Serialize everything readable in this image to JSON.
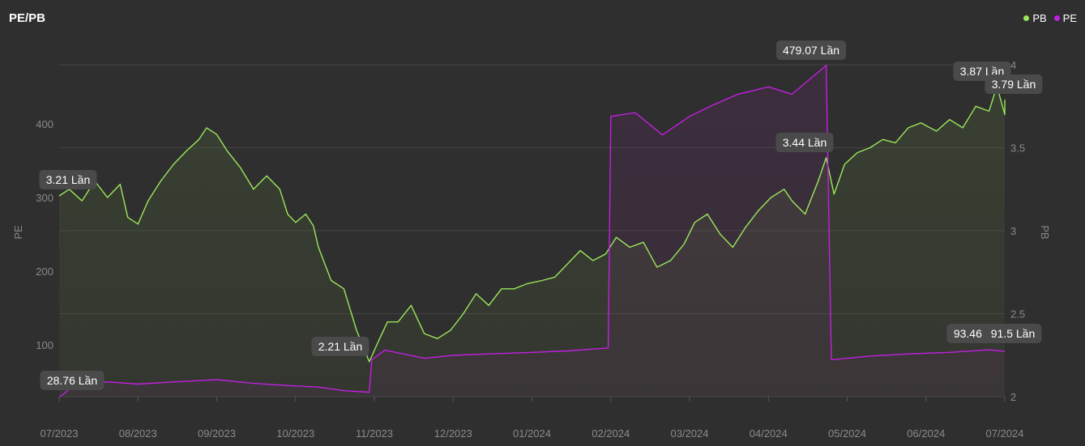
{
  "header": {
    "title": "PE/PB"
  },
  "legend": [
    {
      "name": "PB",
      "color": "#9be65a"
    },
    {
      "name": "PE",
      "color": "#c21fe0"
    }
  ],
  "chart_data": {
    "type": "line",
    "title": "PE/PB",
    "x_ticks": [
      "07/2023",
      "08/2023",
      "09/2023",
      "10/2023",
      "11/2023",
      "12/2023",
      "01/2024",
      "02/2024",
      "03/2024",
      "04/2024",
      "05/2024",
      "06/2024",
      "07/2024"
    ],
    "y_left": {
      "label": "PE",
      "ticks": [
        "100",
        "200",
        "300",
        "400"
      ],
      "range": [
        30,
        480
      ]
    },
    "y_right": {
      "label": "PB",
      "ticks": [
        "2",
        "2.5",
        "3",
        "3.5",
        "4"
      ],
      "range": [
        2,
        4
      ]
    },
    "grid": true,
    "legend_position": "top-right",
    "series": [
      {
        "name": "PB",
        "axis": "right",
        "color": "#9be65a",
        "points": [
          [
            "07/01/2023",
            3.21
          ],
          [
            "07/05/2023",
            3.25
          ],
          [
            "07/10/2023",
            3.18
          ],
          [
            "07/15/2023",
            3.3
          ],
          [
            "07/20/2023",
            3.2
          ],
          [
            "07/25/2023",
            3.28
          ],
          [
            "07/28/2023",
            3.08
          ],
          [
            "08/01/2023",
            3.04
          ],
          [
            "08/05/2023",
            3.18
          ],
          [
            "08/10/2023",
            3.3
          ],
          [
            "08/15/2023",
            3.4
          ],
          [
            "08/20/2023",
            3.48
          ],
          [
            "08/25/2023",
            3.55
          ],
          [
            "08/28/2023",
            3.62
          ],
          [
            "09/01/2023",
            3.58
          ],
          [
            "09/05/2023",
            3.48
          ],
          [
            "09/10/2023",
            3.38
          ],
          [
            "09/15/2023",
            3.25
          ],
          [
            "09/20/2023",
            3.33
          ],
          [
            "09/25/2023",
            3.25
          ],
          [
            "09/28/2023",
            3.1
          ],
          [
            "10/01/2023",
            3.05
          ],
          [
            "10/05/2023",
            3.1
          ],
          [
            "10/08/2023",
            3.03
          ],
          [
            "10/10/2023",
            2.9
          ],
          [
            "10/15/2023",
            2.7
          ],
          [
            "10/20/2023",
            2.65
          ],
          [
            "10/25/2023",
            2.4
          ],
          [
            "10/30/2023",
            2.21
          ],
          [
            "11/03/2023",
            2.35
          ],
          [
            "11/06/2023",
            2.45
          ],
          [
            "11/10/2023",
            2.45
          ],
          [
            "11/15/2023",
            2.55
          ],
          [
            "11/20/2023",
            2.38
          ],
          [
            "11/25/2023",
            2.35
          ],
          [
            "11/30/2023",
            2.4
          ],
          [
            "12/05/2023",
            2.5
          ],
          [
            "12/10/2023",
            2.62
          ],
          [
            "12/15/2023",
            2.55
          ],
          [
            "12/20/2023",
            2.65
          ],
          [
            "12/25/2023",
            2.65
          ],
          [
            "12/30/2023",
            2.68
          ],
          [
            "01/05/2024",
            2.7
          ],
          [
            "01/10/2024",
            2.72
          ],
          [
            "01/15/2024",
            2.8
          ],
          [
            "01/20/2024",
            2.88
          ],
          [
            "01/25/2024",
            2.82
          ],
          [
            "01/30/2024",
            2.86
          ],
          [
            "02/03/2024",
            2.96
          ],
          [
            "02/08/2024",
            2.9
          ],
          [
            "02/13/2024",
            2.93
          ],
          [
            "02/18/2024",
            2.78
          ],
          [
            "02/23/2024",
            2.82
          ],
          [
            "02/28/2024",
            2.92
          ],
          [
            "03/03/2024",
            3.05
          ],
          [
            "03/08/2024",
            3.1
          ],
          [
            "03/13/2024",
            2.98
          ],
          [
            "03/18/2024",
            2.9
          ],
          [
            "03/23/2024",
            3.02
          ],
          [
            "03/28/2024",
            3.12
          ],
          [
            "04/02/2024",
            3.2
          ],
          [
            "04/07/2024",
            3.25
          ],
          [
            "04/10/2024",
            3.18
          ],
          [
            "04/15/2024",
            3.1
          ],
          [
            "04/20/2024",
            3.3
          ],
          [
            "04/23/2024",
            3.44
          ],
          [
            "04/26/2024",
            3.22
          ],
          [
            "04/30/2024",
            3.4
          ],
          [
            "05/05/2024",
            3.47
          ],
          [
            "05/10/2024",
            3.5
          ],
          [
            "05/15/2024",
            3.55
          ],
          [
            "05/20/2024",
            3.53
          ],
          [
            "05/25/2024",
            3.62
          ],
          [
            "05/30/2024",
            3.65
          ],
          [
            "06/05/2024",
            3.6
          ],
          [
            "06/10/2024",
            3.67
          ],
          [
            "06/15/2024",
            3.62
          ],
          [
            "06/20/2024",
            3.75
          ],
          [
            "06/25/2024",
            3.72
          ],
          [
            "06/28/2024",
            3.87
          ],
          [
            "07/01/2024",
            3.7
          ],
          [
            "07/05/2024",
            3.79
          ]
        ]
      },
      {
        "name": "PE",
        "axis": "left",
        "color": "#c21fe0",
        "points": [
          [
            "07/01/2023",
            28.76
          ],
          [
            "07/05/2023",
            40
          ],
          [
            "07/10/2023",
            48
          ],
          [
            "07/20/2023",
            50
          ],
          [
            "08/01/2023",
            47
          ],
          [
            "08/15/2023",
            50
          ],
          [
            "09/01/2023",
            53
          ],
          [
            "09/15/2023",
            48
          ],
          [
            "09/28/2023",
            45
          ],
          [
            "10/10/2023",
            43
          ],
          [
            "10/20/2023",
            38
          ],
          [
            "10/30/2023",
            36
          ],
          [
            "10/31/2023",
            80
          ],
          [
            "11/05/2023",
            93
          ],
          [
            "11/20/2023",
            82
          ],
          [
            "12/01/2023",
            86
          ],
          [
            "12/15/2023",
            88
          ],
          [
            "01/01/2024",
            90
          ],
          [
            "01/15/2024",
            92
          ],
          [
            "01/31/2024",
            96
          ],
          [
            "02/01/2024",
            410
          ],
          [
            "02/10/2024",
            415
          ],
          [
            "02/20/2024",
            385
          ],
          [
            "03/01/2024",
            410
          ],
          [
            "03/10/2024",
            425
          ],
          [
            "03/20/2024",
            440
          ],
          [
            "04/01/2024",
            450
          ],
          [
            "04/10/2024",
            440
          ],
          [
            "04/23/2024",
            479.07
          ],
          [
            "04/25/2024",
            80
          ],
          [
            "05/10/2024",
            85
          ],
          [
            "05/25/2024",
            88
          ],
          [
            "06/10/2024",
            90
          ],
          [
            "06/25/2024",
            93.46
          ],
          [
            "07/05/2024",
            91.5
          ]
        ]
      }
    ],
    "annotations": [
      {
        "text": "3.21 Lần",
        "series": "PB"
      },
      {
        "text": "28.76 Lần",
        "series": "PE"
      },
      {
        "text": "2.21 Lần",
        "series": "PB"
      },
      {
        "text": "479.07 Lần",
        "series": "PE"
      },
      {
        "text": "3.44 Lần",
        "series": "PB"
      },
      {
        "text": "3.87 Lần",
        "series": "PB"
      },
      {
        "text": "3.79 Lần",
        "series": "PB"
      },
      {
        "text": "93.46 Lần",
        "series": "PE"
      },
      {
        "text": "91.5 Lần",
        "series": "PE"
      }
    ]
  }
}
